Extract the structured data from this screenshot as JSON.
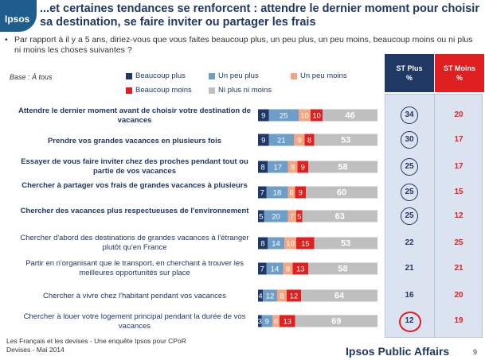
{
  "header": {
    "logo": "Ipsos",
    "title": "...et certaines tendances se renforcent : attendre le dernier moment pour choisir sa destination, se faire inviter ou partager les frais",
    "question_bullet": "•",
    "question": "Par rapport à il y a 5 ans, diriez-vous que vous faites beaucoup plus, un peu plus, un peu moins, beaucoup moins ou ni plus ni moins les choses suivantes ?",
    "base": "Base : À tous"
  },
  "legend": [
    {
      "label": "Beaucoup plus",
      "color": "#1f3864"
    },
    {
      "label": "Un peu plus",
      "color": "#6e9ec7"
    },
    {
      "label": "Un peu moins",
      "color": "#f4a582"
    },
    {
      "label": "Beaucoup moins",
      "color": "#e02020"
    },
    {
      "label": "Ni plus ni moins",
      "color": "#bfbfbf"
    }
  ],
  "columns": {
    "st_plus": {
      "line1": "ST Plus",
      "line2": "%",
      "color": "#1f3864"
    },
    "st_moins": {
      "line1": "ST Moins",
      "line2": "%",
      "color": "#e02020"
    }
  },
  "chart_data": {
    "type": "bar",
    "stacked": true,
    "orientation": "horizontal",
    "unit": "%",
    "categories": [
      "Attendre le dernier moment avant de choisir votre destination de vacances",
      "Prendre vos grandes vacances en plusieurs fois",
      "Essayer de vous faire inviter chez des proches pendant tout ou partie de vos vacances",
      "Chercher à partager vos frais de grandes vacances à plusieurs",
      "Chercher des vacances plus respectueuses de l'environnement",
      "Chercher d'abord des destinations de grandes vacances à l'étranger plutôt qu'en France",
      "Partir en n'organisant que le transport, en cherchant à trouver les meilleures opportunités sur place",
      "Chercher à vivre chez l'habitant pendant vos vacances",
      "Chercher à louer votre logement principal pendant la durée de vos vacances"
    ],
    "series": [
      {
        "name": "Beaucoup plus",
        "values": [
          9,
          9,
          8,
          7,
          5,
          8,
          7,
          4,
          3
        ]
      },
      {
        "name": "Un peu plus",
        "values": [
          25,
          21,
          17,
          18,
          20,
          14,
          14,
          12,
          9
        ]
      },
      {
        "name": "Un peu moins",
        "values": [
          10,
          9,
          8,
          6,
          7,
          10,
          8,
          8,
          6
        ]
      },
      {
        "name": "Beaucoup moins",
        "values": [
          10,
          8,
          9,
          9,
          5,
          15,
          13,
          12,
          13
        ]
      },
      {
        "name": "Ni plus ni moins",
        "values": [
          46,
          53,
          58,
          60,
          63,
          53,
          58,
          64,
          69
        ]
      }
    ],
    "st_plus": [
      34,
      30,
      25,
      25,
      25,
      22,
      21,
      16,
      12
    ],
    "st_moins": [
      20,
      17,
      17,
      15,
      12,
      25,
      21,
      20,
      19
    ],
    "bold_rows": [
      true,
      true,
      true,
      true,
      true,
      false,
      false,
      false,
      false
    ],
    "circled_st_plus": [
      true,
      true,
      true,
      true,
      true,
      false,
      false,
      false,
      false
    ],
    "highlighted_st_plus": [
      false,
      false,
      false,
      false,
      false,
      false,
      false,
      false,
      true
    ]
  },
  "footer": {
    "line1": "Les Français et les devises - Une enquête Ipsos pour CPoR",
    "line2": "Devises - Mai 2014",
    "brand": "Ipsos Public Affairs",
    "page": "9"
  }
}
